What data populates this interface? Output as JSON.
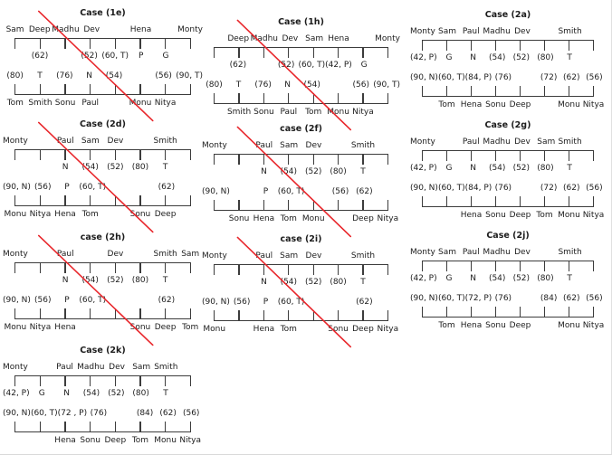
{
  "colors": {
    "cross_red": "#e8262b",
    "bracket_line": "#3c3c3c",
    "text": "#1c1c1c",
    "background": "#ffffff"
  },
  "cases": [
    {
      "id": "1e",
      "title": "Case (1e)",
      "crossed": true,
      "top_names": [
        "Sam",
        "Deep",
        "Madhu",
        "Dev",
        "",
        "Hena",
        "",
        "Monty"
      ],
      "top_values": [
        "",
        "(62)",
        "",
        "(52)",
        "(60, T)",
        "P",
        "G",
        ""
      ],
      "bottom_values": [
        "(80)",
        "T",
        "(76)",
        "N",
        "(54)",
        "",
        "(56)",
        "(90, T)"
      ],
      "bottom_names": [
        "Tom",
        "Smith",
        "Sonu",
        "Paul",
        "",
        "Monu",
        "Nitya",
        ""
      ]
    },
    {
      "id": "1h",
      "title": "Case (1h)",
      "crossed": true,
      "top_names": [
        "",
        "Deep",
        "Madhu",
        "Dev",
        "Sam",
        "Hena",
        "",
        "Monty"
      ],
      "top_values": [
        "",
        "(62)",
        "",
        "(52)",
        "(60, T)",
        "(42, P)",
        "G",
        ""
      ],
      "bottom_values": [
        "(80)",
        "T",
        "(76)",
        "N",
        "(54)",
        "",
        "(56)",
        "(90, T)"
      ],
      "bottom_names": [
        "",
        "Smith",
        "Sonu",
        "Paul",
        "Tom",
        "Monu",
        "Nitya",
        ""
      ]
    },
    {
      "id": "2a",
      "title": "Case (2a)",
      "crossed": false,
      "top_names": [
        "Monty",
        "Sam",
        "Paul",
        "Madhu",
        "Dev",
        "",
        "Smith",
        ""
      ],
      "top_values": [
        "(42, P)",
        "G",
        "N",
        "(54)",
        "(52)",
        "(80)",
        "T",
        ""
      ],
      "bottom_values": [
        "(90, N)",
        "(60, T)",
        "(84, P)",
        "(76)",
        "",
        "(72)",
        "(62)",
        "(56)"
      ],
      "bottom_names": [
        "",
        "Tom",
        "Hena",
        "Sonu",
        "Deep",
        "",
        "Monu",
        "Nitya"
      ]
    },
    {
      "id": "2d",
      "title": "Case (2d)",
      "crossed": true,
      "top_names": [
        "Monty",
        "",
        "Paul",
        "Sam",
        "Dev",
        "",
        "Smith",
        ""
      ],
      "top_values": [
        "",
        "",
        "N",
        "(54)",
        "(52)",
        "(80)",
        "T",
        ""
      ],
      "bottom_values": [
        "(90, N)",
        "(56)",
        "P",
        "(60, T)",
        "",
        "",
        "(62)",
        ""
      ],
      "bottom_names": [
        "Monu",
        "Nitya",
        "Hena",
        "Tom",
        "",
        "Sonu",
        "Deep",
        ""
      ]
    },
    {
      "id": "2f",
      "title": "case (2f)",
      "crossed": true,
      "top_names": [
        "Monty",
        "",
        "Paul",
        "Sam",
        "Dev",
        "",
        "Smith",
        ""
      ],
      "top_values": [
        "",
        "",
        "N",
        "(54)",
        "(52)",
        "(80)",
        "T",
        ""
      ],
      "bottom_values": [
        "(90, N)",
        "",
        "P",
        "(60, T)",
        "",
        "(56)",
        "(62)",
        ""
      ],
      "bottom_names": [
        "",
        "Sonu",
        "Hena",
        "Tom",
        "Monu",
        "",
        "Deep",
        "Nitya"
      ]
    },
    {
      "id": "2g",
      "title": "Case (2g)",
      "crossed": false,
      "top_names": [
        "Monty",
        "",
        "Paul",
        "Madhu",
        "Dev",
        "Sam",
        "Smith",
        ""
      ],
      "top_values": [
        "(42, P)",
        "G",
        "N",
        "(54)",
        "(52)",
        "(80)",
        "T",
        ""
      ],
      "bottom_values": [
        "(90, N)",
        "(60, T)",
        "(84, P)",
        "(76)",
        "",
        "(72)",
        "(62)",
        "(56)"
      ],
      "bottom_names": [
        "",
        "",
        "Hena",
        "Sonu",
        "Deep",
        "Tom",
        "Monu",
        "Nitya"
      ]
    },
    {
      "id": "2h",
      "title": "case (2h)",
      "crossed": true,
      "top_names": [
        "Monty",
        "",
        "Paul",
        "",
        "Dev",
        "",
        "Smith",
        "Sam"
      ],
      "top_values": [
        "",
        "",
        "N",
        "(54)",
        "(52)",
        "(80)",
        "T",
        ""
      ],
      "bottom_values": [
        "(90, N)",
        "(56)",
        "P",
        "(60, T)",
        "",
        "",
        "(62)",
        ""
      ],
      "bottom_names": [
        "Monu",
        "Nitya",
        "Hena",
        "",
        "",
        "Sonu",
        "Deep",
        "Tom"
      ]
    },
    {
      "id": "2i",
      "title": "case (2i)",
      "crossed": true,
      "top_names": [
        "Monty",
        "",
        "Paul",
        "Sam",
        "Dev",
        "",
        "Smith",
        ""
      ],
      "top_values": [
        "",
        "",
        "N",
        "(54)",
        "(52)",
        "(80)",
        "T",
        ""
      ],
      "bottom_values": [
        "(90, N)",
        "(56)",
        "P",
        "(60, T)",
        "",
        "",
        "(62)",
        ""
      ],
      "bottom_names": [
        "Monu",
        "",
        "Hena",
        "Tom",
        "",
        "Sonu",
        "Deep",
        "Nitya"
      ]
    },
    {
      "id": "2j",
      "title": "Case (2j)",
      "crossed": false,
      "top_names": [
        "Monty",
        "Sam",
        "Paul",
        "Madhu",
        "Dev",
        "",
        "Smith",
        ""
      ],
      "top_values": [
        "(42, P)",
        "G",
        "N",
        "(54)",
        "(52)",
        "(80)",
        "T",
        ""
      ],
      "bottom_values": [
        "(90, N)",
        "(60, T)",
        "(72, P)",
        "(76)",
        "",
        "(84)",
        "(62)",
        "(56)"
      ],
      "bottom_names": [
        "",
        "Tom",
        "Hena",
        "Sonu",
        "Deep",
        "",
        "Monu",
        "Nitya"
      ]
    },
    {
      "id": "2k",
      "title": "Case (2k)",
      "crossed": false,
      "top_names": [
        "Monty",
        "",
        "Paul",
        "Madhu",
        "Dev",
        "Sam",
        "Smith",
        ""
      ],
      "top_values": [
        "(42, P)",
        "G",
        "N",
        "(54)",
        "(52)",
        "(80)",
        "T",
        ""
      ],
      "bottom_values": [
        "(90, N)",
        "(60, T)",
        "(72 , P)",
        "(76)",
        "",
        "(84)",
        "(62)",
        "(56)"
      ],
      "bottom_names": [
        "",
        "",
        "Hena",
        "Sonu",
        "Deep",
        "Tom",
        "Monu",
        "Nitya"
      ]
    }
  ]
}
